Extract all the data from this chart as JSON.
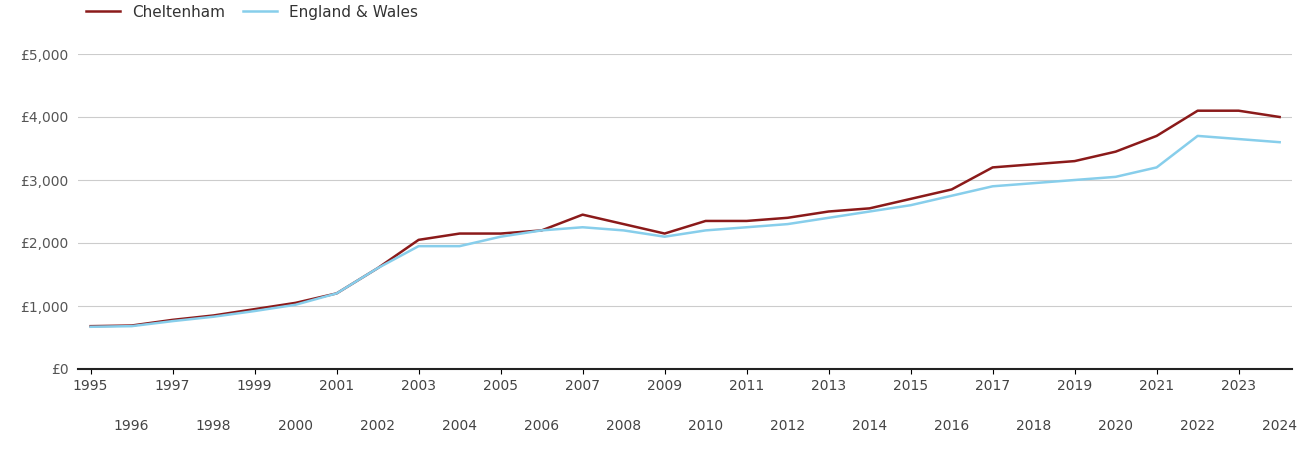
{
  "years": [
    1995,
    1996,
    1997,
    1998,
    1999,
    2000,
    2001,
    2002,
    2003,
    2004,
    2005,
    2006,
    2007,
    2008,
    2009,
    2010,
    2011,
    2012,
    2013,
    2014,
    2015,
    2016,
    2017,
    2018,
    2019,
    2020,
    2021,
    2022,
    2023,
    2024
  ],
  "cheltenham": [
    680,
    690,
    780,
    850,
    950,
    1050,
    1200,
    1600,
    2050,
    2150,
    2150,
    2200,
    2450,
    2300,
    2150,
    2350,
    2350,
    2400,
    2500,
    2550,
    2700,
    2850,
    3200,
    3250,
    3300,
    3450,
    3700,
    4100,
    4100,
    4000
  ],
  "england_wales": [
    670,
    680,
    760,
    830,
    920,
    1020,
    1200,
    1600,
    1950,
    1950,
    2100,
    2200,
    2250,
    2200,
    2100,
    2200,
    2250,
    2300,
    2400,
    2500,
    2600,
    2750,
    2900,
    2950,
    3000,
    3050,
    3200,
    3700,
    3650,
    3600
  ],
  "cheltenham_color": "#8b1a1a",
  "england_wales_color": "#87ceeb",
  "background_color": "#ffffff",
  "grid_color": "#cccccc",
  "ylim": [
    0,
    5000
  ],
  "yticks": [
    0,
    1000,
    2000,
    3000,
    4000,
    5000
  ],
  "ytick_labels": [
    "£0",
    "£1,000",
    "£2,000",
    "£3,000",
    "£4,000",
    "£5,000"
  ],
  "legend_cheltenham": "Cheltenham",
  "legend_england_wales": "England & Wales",
  "line_width": 1.8,
  "tick_label_fontsize": 10,
  "legend_fontsize": 11
}
